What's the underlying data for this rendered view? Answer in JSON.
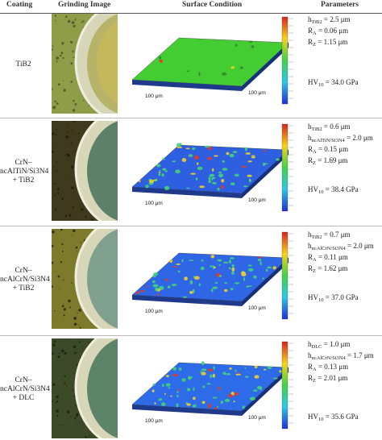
{
  "headers": {
    "coating": "Coating",
    "grinding": "Grinding Image",
    "surface": "Surface Condition",
    "parameters": "Parameters"
  },
  "rows": [
    {
      "coating_lines": [
        "TiB2"
      ],
      "color": "#44cc33",
      "p1": "h",
      "p1sub": "TiB2",
      "p1val": " = 2.5 μm",
      "p2": "",
      "p2sub": "",
      "p2val": "",
      "ra": " = 0.06 μm",
      "rz": " = 1.15 μm",
      "hv": " = 34.0 GPa",
      "scale_a": "100 μm",
      "scale_b": "100 μm"
    },
    {
      "coating_lines": [
        "CrN–",
        "ncAlTiN/Si3N4",
        "+ TiB2"
      ],
      "color": "#2e5fe0",
      "p1": "h",
      "p1sub": "TiB2",
      "p1val": " = 0.6 μm",
      "p2": "h",
      "p2sub": "ncAlTiN/Si3N4",
      "p2val": " = 2.0 μm",
      "ra": " = 0.15 μm",
      "rz": " = 1.69 μm",
      "hv": " = 38.4 GPa",
      "scale_a": "100 μm",
      "scale_b": "100 μm"
    },
    {
      "coating_lines": [
        "CrN–",
        "ncAlCrN/Si3N4",
        "+ TiB2"
      ],
      "color": "#2e66e6",
      "p1": "h",
      "p1sub": "TiB2",
      "p1val": " = 0.7 μm",
      "p2": "h",
      "p2sub": "ncAlCrN/Si3N4",
      "p2val": " = 2.0 μm",
      "ra": " = 0.11 μm",
      "rz": " = 1.62 μm",
      "hv": " = 37.0 GPa",
      "scale_a": "100 μm",
      "scale_b": "100 μm"
    },
    {
      "coating_lines": [
        "CrN–",
        "ncAlCrN/Si3N4",
        "+ DLC"
      ],
      "color": "#2d6be8",
      "p1": "h",
      "p1sub": "DLC",
      "p1val": " = 1.0 μm",
      "p2": "h",
      "p2sub": "ncAlCrN/Si3N4",
      "p2val": " = 1.7 μm",
      "ra": " = 0.13 μm",
      "rz": " = 2.01 μm",
      "hv": " = 35.6 GPa",
      "scale_a": "100 μm",
      "scale_b": "100 μm"
    }
  ],
  "labels": {
    "ra": "R",
    "ra_sub": "A",
    "rz": "R",
    "rz_sub": "Z",
    "hv": "HV",
    "hv_sub": "10"
  }
}
